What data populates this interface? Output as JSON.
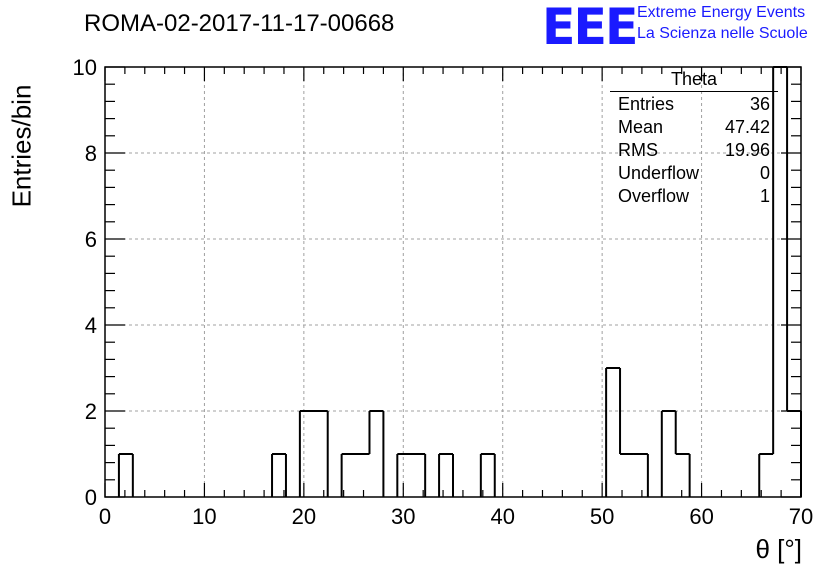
{
  "title": "ROMA-02-2017-11-17-00668",
  "logo": {
    "mark": "EEE",
    "line1": "Extreme Energy Events",
    "line2": "La Scienza nelle Scuole",
    "color": "#1a1aff"
  },
  "stats": {
    "title": "Theta",
    "rows": [
      {
        "label": "Entries",
        "value": "36"
      },
      {
        "label": "Mean",
        "value": "47.42"
      },
      {
        "label": "RMS",
        "value": "19.96"
      },
      {
        "label": "Underflow",
        "value": "0"
      },
      {
        "label": "Overflow",
        "value": "1"
      }
    ]
  },
  "chart_data": {
    "type": "bar",
    "style": "step-histogram",
    "xlabel": "θ [°]",
    "ylabel": "Entries/bin",
    "xlim": [
      0,
      70
    ],
    "ylim": [
      0,
      10
    ],
    "x_ticks": [
      0,
      10,
      20,
      30,
      40,
      50,
      60,
      70
    ],
    "y_ticks": [
      0,
      2,
      4,
      6,
      8,
      10
    ],
    "grid": true,
    "bin_width": 1.4,
    "bin_low_edges": [
      0,
      1.4,
      2.8,
      4.2,
      5.6,
      7.0,
      8.4,
      9.8,
      11.2,
      12.6,
      14.0,
      15.4,
      16.8,
      18.2,
      19.6,
      21.0,
      22.4,
      23.8,
      25.2,
      26.6,
      28.0,
      29.4,
      30.8,
      32.2,
      33.6,
      35.0,
      36.4,
      37.8,
      39.2,
      40.6,
      42.0,
      43.4,
      44.8,
      46.2,
      47.6,
      49.0,
      50.4,
      51.8,
      53.2,
      54.6,
      56.0,
      57.4,
      58.8,
      60.2,
      61.6,
      63.0,
      64.4,
      65.8,
      67.2,
      68.6
    ],
    "values": [
      0,
      1,
      0,
      0,
      0,
      0,
      0,
      0,
      0,
      0,
      0,
      0,
      1,
      0,
      2,
      2,
      0,
      1,
      1,
      2,
      0,
      1,
      1,
      0,
      1,
      0,
      0,
      1,
      0,
      0,
      0,
      0,
      0,
      0,
      0,
      0,
      3,
      1,
      1,
      0,
      2,
      1,
      0,
      0,
      0,
      0,
      0,
      1,
      10,
      2
    ],
    "line_color": "#000000",
    "grid_color": "#a0a0a0"
  }
}
